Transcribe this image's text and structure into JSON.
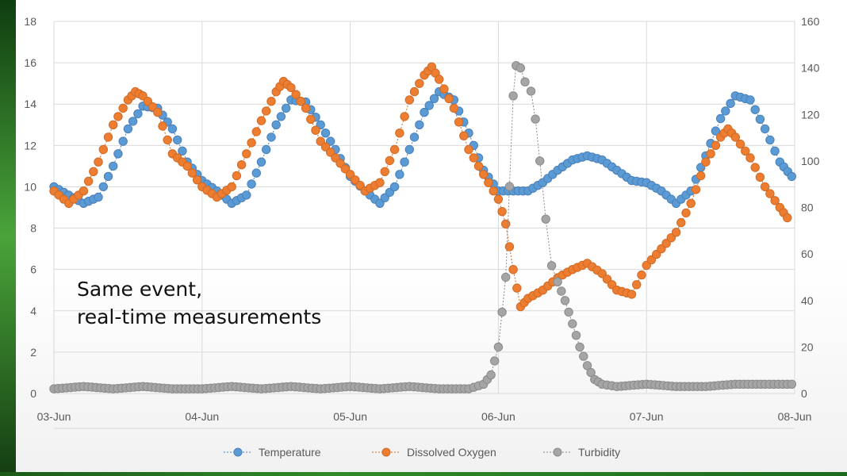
{
  "overlay": {
    "line1": "Same event,",
    "line2": "real-time measurements"
  },
  "colors": {
    "temperature": "#5b9bd5",
    "temperature_stroke": "#4a7fb8",
    "dissolved_oxygen": "#ed7d31",
    "dissolved_oxygen_stroke": "#d06a24",
    "turbidity": "#a5a5a5",
    "turbidity_stroke": "#8a8a8a",
    "grid": "#d9d9d9",
    "axis_text": "#595959"
  },
  "chart_data": {
    "type": "scatter",
    "title": "",
    "xlabel": "",
    "ylabel": "",
    "y2label": "",
    "grid": true,
    "legend_position": "bottom",
    "x_ticks": [
      "03-Jun",
      "04-Jun",
      "05-Jun",
      "06-Jun",
      "07-Jun",
      "08-Jun"
    ],
    "xlim": [
      0,
      5
    ],
    "ylim": [
      0,
      18
    ],
    "y_ticks": [
      0,
      2,
      4,
      6,
      8,
      10,
      12,
      14,
      16,
      18
    ],
    "y2lim": [
      0,
      160
    ],
    "y2_ticks": [
      0,
      20,
      40,
      60,
      80,
      100,
      120,
      140,
      160
    ],
    "x_unit": "days since 03-Jun",
    "series": [
      {
        "name": "Temperature",
        "axis": "left",
        "points": [
          [
            0.0,
            10.0
          ],
          [
            0.1,
            9.6
          ],
          [
            0.2,
            9.2
          ],
          [
            0.3,
            9.5
          ],
          [
            0.4,
            11.0
          ],
          [
            0.5,
            12.8
          ],
          [
            0.6,
            13.9
          ],
          [
            0.7,
            13.8
          ],
          [
            0.8,
            12.8
          ],
          [
            0.9,
            11.2
          ],
          [
            1.0,
            10.3
          ],
          [
            1.1,
            9.8
          ],
          [
            1.2,
            9.2
          ],
          [
            1.3,
            9.6
          ],
          [
            1.4,
            11.2
          ],
          [
            1.5,
            13.0
          ],
          [
            1.6,
            14.2
          ],
          [
            1.7,
            14.1
          ],
          [
            1.8,
            13.0
          ],
          [
            1.9,
            11.8
          ],
          [
            2.0,
            10.5
          ],
          [
            2.1,
            9.8
          ],
          [
            2.2,
            9.2
          ],
          [
            2.3,
            10.0
          ],
          [
            2.4,
            11.8
          ],
          [
            2.5,
            13.6
          ],
          [
            2.6,
            14.6
          ],
          [
            2.7,
            14.2
          ],
          [
            2.8,
            12.6
          ],
          [
            2.9,
            10.8
          ],
          [
            3.0,
            9.8
          ],
          [
            3.1,
            9.8
          ],
          [
            3.2,
            9.8
          ],
          [
            3.3,
            10.2
          ],
          [
            3.4,
            10.8
          ],
          [
            3.5,
            11.3
          ],
          [
            3.6,
            11.5
          ],
          [
            3.7,
            11.3
          ],
          [
            3.8,
            10.8
          ],
          [
            3.9,
            10.3
          ],
          [
            4.0,
            10.2
          ],
          [
            4.1,
            9.8
          ],
          [
            4.2,
            9.2
          ],
          [
            4.3,
            9.8
          ],
          [
            4.4,
            11.5
          ],
          [
            4.5,
            13.3
          ],
          [
            4.6,
            14.4
          ],
          [
            4.7,
            14.2
          ],
          [
            4.8,
            12.8
          ],
          [
            4.9,
            11.2
          ],
          [
            4.98,
            10.5
          ]
        ]
      },
      {
        "name": "Dissolved Oxygen",
        "axis": "left",
        "points": [
          [
            0.0,
            9.8
          ],
          [
            0.1,
            9.2
          ],
          [
            0.2,
            9.8
          ],
          [
            0.3,
            11.2
          ],
          [
            0.4,
            13.0
          ],
          [
            0.5,
            14.2
          ],
          [
            0.55,
            14.6
          ],
          [
            0.6,
            14.4
          ],
          [
            0.7,
            13.6
          ],
          [
            0.8,
            11.6
          ],
          [
            0.9,
            11.0
          ],
          [
            1.0,
            10.0
          ],
          [
            1.1,
            9.5
          ],
          [
            1.2,
            10.0
          ],
          [
            1.3,
            11.6
          ],
          [
            1.4,
            13.2
          ],
          [
            1.5,
            14.6
          ],
          [
            1.55,
            15.1
          ],
          [
            1.6,
            14.8
          ],
          [
            1.7,
            13.8
          ],
          [
            1.8,
            12.2
          ],
          [
            1.9,
            11.4
          ],
          [
            2.0,
            10.6
          ],
          [
            2.1,
            9.8
          ],
          [
            2.2,
            10.2
          ],
          [
            2.3,
            11.8
          ],
          [
            2.4,
            14.2
          ],
          [
            2.5,
            15.4
          ],
          [
            2.55,
            15.8
          ],
          [
            2.6,
            15.2
          ],
          [
            2.7,
            13.8
          ],
          [
            2.8,
            11.8
          ],
          [
            2.9,
            10.6
          ],
          [
            3.0,
            9.4
          ],
          [
            3.05,
            8.2
          ],
          [
            3.1,
            6.0
          ],
          [
            3.15,
            4.2
          ],
          [
            3.2,
            4.6
          ],
          [
            3.3,
            5.0
          ],
          [
            3.4,
            5.6
          ],
          [
            3.5,
            6.0
          ],
          [
            3.6,
            6.3
          ],
          [
            3.7,
            5.8
          ],
          [
            3.8,
            5.0
          ],
          [
            3.9,
            4.8
          ],
          [
            4.0,
            6.2
          ],
          [
            4.1,
            7.0
          ],
          [
            4.2,
            7.8
          ],
          [
            4.3,
            9.2
          ],
          [
            4.4,
            11.2
          ],
          [
            4.5,
            12.4
          ],
          [
            4.55,
            12.8
          ],
          [
            4.6,
            12.4
          ],
          [
            4.7,
            11.4
          ],
          [
            4.8,
            10.0
          ],
          [
            4.9,
            9.0
          ],
          [
            4.95,
            8.5
          ]
        ]
      },
      {
        "name": "Turbidity",
        "axis": "right",
        "points": [
          [
            0.0,
            2
          ],
          [
            0.2,
            3
          ],
          [
            0.4,
            2
          ],
          [
            0.6,
            3
          ],
          [
            0.8,
            2
          ],
          [
            1.0,
            2
          ],
          [
            1.2,
            3
          ],
          [
            1.4,
            2
          ],
          [
            1.6,
            3
          ],
          [
            1.8,
            2
          ],
          [
            2.0,
            3
          ],
          [
            2.2,
            2
          ],
          [
            2.4,
            3
          ],
          [
            2.6,
            2
          ],
          [
            2.8,
            2
          ],
          [
            2.9,
            4
          ],
          [
            2.95,
            8
          ],
          [
            3.0,
            20
          ],
          [
            3.05,
            50
          ],
          [
            3.1,
            128
          ],
          [
            3.12,
            141
          ],
          [
            3.15,
            140
          ],
          [
            3.18,
            134
          ],
          [
            3.22,
            130
          ],
          [
            3.25,
            118
          ],
          [
            3.28,
            100
          ],
          [
            3.32,
            75
          ],
          [
            3.36,
            55
          ],
          [
            3.4,
            48
          ],
          [
            3.45,
            40
          ],
          [
            3.5,
            30
          ],
          [
            3.55,
            20
          ],
          [
            3.6,
            12
          ],
          [
            3.65,
            6
          ],
          [
            3.7,
            4
          ],
          [
            3.8,
            3
          ],
          [
            4.0,
            4
          ],
          [
            4.2,
            3
          ],
          [
            4.4,
            3
          ],
          [
            4.6,
            4
          ],
          [
            4.8,
            4
          ],
          [
            4.98,
            4
          ]
        ]
      }
    ]
  }
}
